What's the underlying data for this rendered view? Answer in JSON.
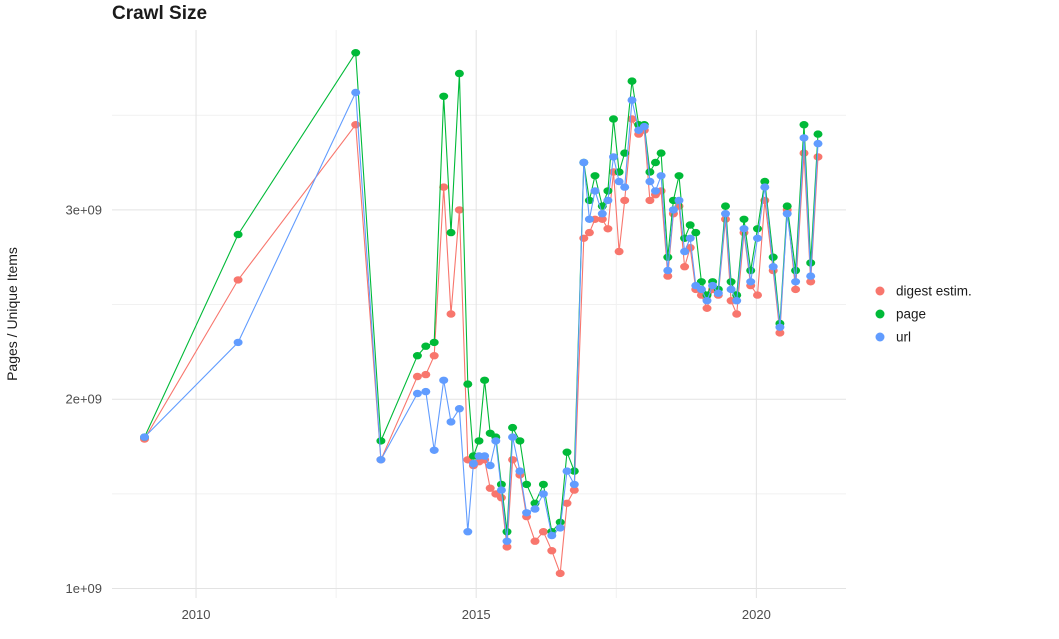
{
  "chart_data": {
    "type": "line",
    "title": "Crawl Size",
    "xlabel": "",
    "ylabel": "Pages / Unique Items",
    "y_unit_multiplier": 1000000000,
    "unit_note": "series values are in billions (1e+09)",
    "grid": true,
    "legend_position": "right",
    "xlim": [
      2008.5,
      2021.6
    ],
    "ylim": [
      0.95,
      3.95
    ],
    "x_ticks": [
      2010,
      2015,
      2020
    ],
    "x_tick_labels": [
      "2010",
      "2015",
      "2020"
    ],
    "x_minor_ticks": [
      2012.5,
      2017.5
    ],
    "y_ticks": [
      1,
      2,
      3
    ],
    "y_tick_labels": [
      "1e+09",
      "2e+09",
      "3e+09"
    ],
    "y_minor_ticks": [
      1.5,
      2.5,
      3.5
    ],
    "x": [
      2009.08,
      2010.75,
      2012.85,
      2013.3,
      2013.95,
      2014.1,
      2014.25,
      2014.42,
      2014.55,
      2014.7,
      2014.85,
      2014.95,
      2015.05,
      2015.15,
      2015.25,
      2015.35,
      2015.45,
      2015.55,
      2015.65,
      2015.78,
      2015.9,
      2016.05,
      2016.2,
      2016.35,
      2016.5,
      2016.62,
      2016.75,
      2016.92,
      2017.02,
      2017.12,
      2017.25,
      2017.35,
      2017.45,
      2017.55,
      2017.65,
      2017.78,
      2017.9,
      2018.0,
      2018.1,
      2018.2,
      2018.3,
      2018.42,
      2018.52,
      2018.62,
      2018.72,
      2018.82,
      2018.92,
      2019.02,
      2019.12,
      2019.22,
      2019.32,
      2019.45,
      2019.55,
      2019.65,
      2019.78,
      2019.9,
      2020.02,
      2020.15,
      2020.3,
      2020.42,
      2020.55,
      2020.7,
      2020.85,
      2020.97,
      2021.1
    ],
    "series": [
      {
        "name": "digest estim.",
        "color": "#F8766D",
        "values": [
          1.79,
          2.63,
          3.45,
          1.68,
          2.12,
          2.13,
          2.23,
          3.12,
          2.45,
          3.0,
          1.68,
          1.65,
          1.67,
          1.68,
          1.53,
          1.5,
          1.48,
          1.22,
          1.68,
          1.6,
          1.38,
          1.25,
          1.3,
          1.2,
          1.08,
          1.45,
          1.52,
          2.85,
          2.88,
          2.95,
          2.95,
          2.9,
          3.2,
          2.78,
          3.05,
          3.48,
          3.4,
          3.42,
          3.05,
          3.08,
          3.1,
          2.65,
          2.98,
          3.02,
          2.7,
          2.8,
          2.58,
          2.55,
          2.48,
          2.58,
          2.55,
          2.95,
          2.52,
          2.45,
          2.88,
          2.6,
          2.55,
          3.05,
          2.68,
          2.35,
          3.0,
          2.58,
          3.3,
          2.62,
          3.28
        ]
      },
      {
        "name": "page",
        "color": "#00BA38",
        "values": [
          1.8,
          2.87,
          3.83,
          1.78,
          2.23,
          2.28,
          2.3,
          3.6,
          2.88,
          3.72,
          2.08,
          1.7,
          1.78,
          2.1,
          1.82,
          1.8,
          1.55,
          1.3,
          1.85,
          1.78,
          1.55,
          1.45,
          1.55,
          1.3,
          1.35,
          1.72,
          1.62,
          3.25,
          3.05,
          3.18,
          3.02,
          3.1,
          3.48,
          3.2,
          3.3,
          3.68,
          3.45,
          3.45,
          3.2,
          3.25,
          3.3,
          2.75,
          3.05,
          3.18,
          2.85,
          2.92,
          2.88,
          2.62,
          2.55,
          2.62,
          2.58,
          3.02,
          2.62,
          2.55,
          2.95,
          2.68,
          2.9,
          3.15,
          2.75,
          2.4,
          3.02,
          2.68,
          3.45,
          2.72,
          3.4
        ]
      },
      {
        "name": "url",
        "color": "#619CFF",
        "values": [
          1.8,
          2.3,
          3.62,
          1.68,
          2.03,
          2.04,
          1.73,
          2.1,
          1.88,
          1.95,
          1.3,
          1.66,
          1.7,
          1.7,
          1.65,
          1.78,
          1.52,
          1.25,
          1.8,
          1.62,
          1.4,
          1.42,
          1.5,
          1.28,
          1.32,
          1.62,
          1.55,
          3.25,
          2.95,
          3.1,
          2.98,
          3.05,
          3.28,
          3.15,
          3.12,
          3.58,
          3.42,
          3.44,
          3.15,
          3.1,
          3.18,
          2.68,
          3.0,
          3.05,
          2.78,
          2.85,
          2.6,
          2.58,
          2.52,
          2.6,
          2.56,
          2.98,
          2.58,
          2.52,
          2.9,
          2.62,
          2.85,
          3.12,
          2.7,
          2.38,
          2.98,
          2.62,
          3.38,
          2.65,
          3.35
        ]
      }
    ]
  }
}
